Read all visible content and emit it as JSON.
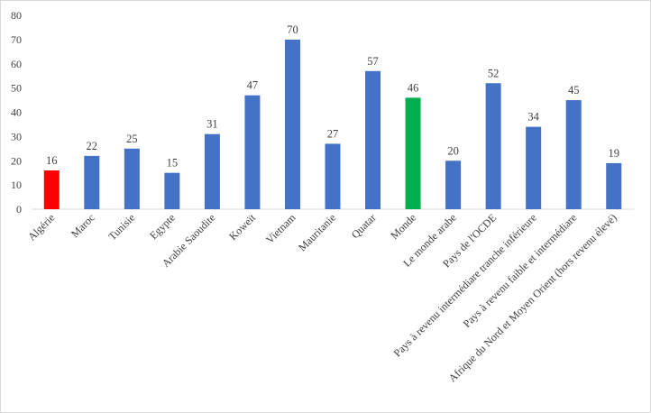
{
  "chart_data": {
    "type": "bar",
    "categories": [
      "Algérie",
      "Maroc",
      "Tunisie",
      "Egypte",
      "Arabie Saoudite",
      "Koweït",
      "Vietnam",
      "Mauritanie",
      "Quatar",
      "Monde",
      "Le monde arabe",
      "Pays de l'OCDE",
      "Pays à revenu intermédiare tranche inférieure",
      "Pays à revenu faible et intermédiare",
      "Afrique du Nord et Moyen Orient (hors revenu élevé)"
    ],
    "values": [
      16,
      22,
      25,
      15,
      31,
      47,
      70,
      27,
      57,
      46,
      20,
      52,
      34,
      45,
      19
    ],
    "colors": [
      "#ff0000",
      "#4472c4",
      "#4472c4",
      "#4472c4",
      "#4472c4",
      "#4472c4",
      "#4472c4",
      "#4472c4",
      "#4472c4",
      "#00b050",
      "#4472c4",
      "#4472c4",
      "#4472c4",
      "#4472c4",
      "#4472c4"
    ],
    "ylim": [
      0,
      80
    ],
    "yticks": [
      0,
      10,
      20,
      30,
      40,
      50,
      60,
      70,
      80
    ],
    "grid": false
  }
}
